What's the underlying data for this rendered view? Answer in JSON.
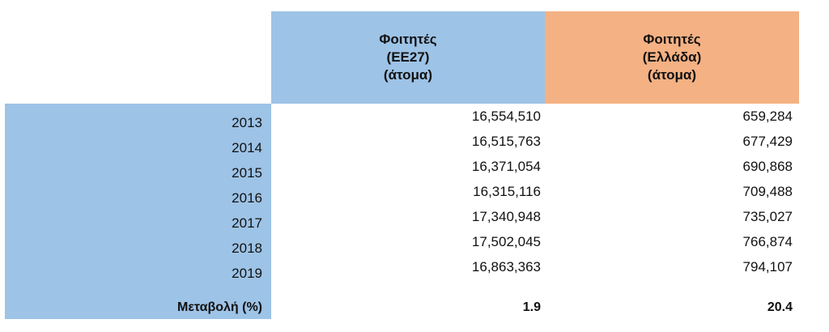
{
  "headers": {
    "ee27": [
      "Φοιτητές",
      "(ΕΕ27)",
      "(άτομα)"
    ],
    "greece": [
      "Φοιτητές",
      "(Ελλάδα)",
      "(άτομα)"
    ]
  },
  "rows": [
    {
      "year": "2013",
      "ee27": "16,554,510",
      "greece": "659,284"
    },
    {
      "year": "2014",
      "ee27": "16,515,763",
      "greece": "677,429"
    },
    {
      "year": "2015",
      "ee27": "16,371,054",
      "greece": "690,868"
    },
    {
      "year": "2016",
      "ee27": "16,315,116",
      "greece": "709,488"
    },
    {
      "year": "2017",
      "ee27": "17,340,948",
      "greece": "735,027"
    },
    {
      "year": "2018",
      "ee27": "17,502,045",
      "greece": "766,874"
    },
    {
      "year": "2019",
      "ee27": "16,863,363",
      "greece": "794,107"
    }
  ],
  "total": {
    "label": "Μεταβολή (%)",
    "ee27": "1.9",
    "greece": "20.4"
  },
  "colors": {
    "blue": "#9dc3e6",
    "orange": "#f4b183"
  }
}
